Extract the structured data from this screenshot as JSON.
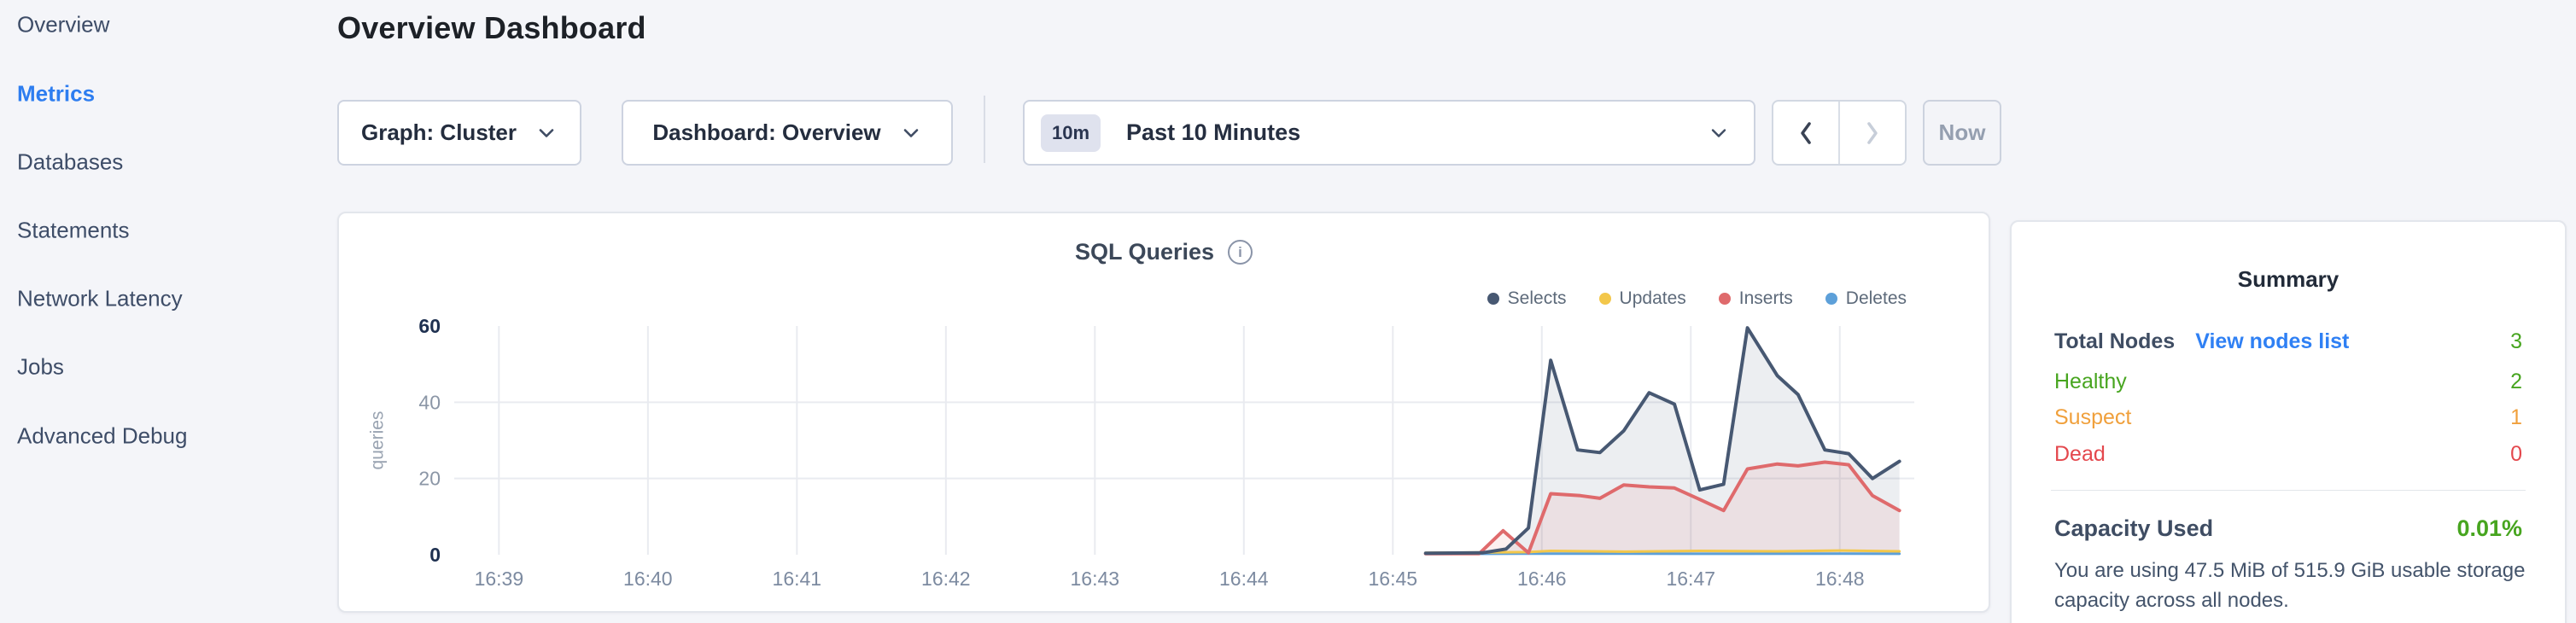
{
  "sidebar": {
    "items": [
      {
        "label": "Overview",
        "active": false
      },
      {
        "label": "Metrics",
        "active": true
      },
      {
        "label": "Databases",
        "active": false
      },
      {
        "label": "Statements",
        "active": false
      },
      {
        "label": "Network Latency",
        "active": false
      },
      {
        "label": "Jobs",
        "active": false
      },
      {
        "label": "Advanced Debug",
        "active": false
      }
    ]
  },
  "header": {
    "title": "Overview Dashboard"
  },
  "toolbar": {
    "graph_dropdown": "Graph: Cluster",
    "dashboard_dropdown": "Dashboard: Overview",
    "time_badge": "10m",
    "time_label": "Past 10 Minutes",
    "now_label": "Now"
  },
  "chart_card": {
    "title": "SQL Queries"
  },
  "chart_data": {
    "type": "area",
    "title": "SQL Queries",
    "ylabel": "queries",
    "ylim": [
      0,
      60
    ],
    "yticks": [
      0,
      20,
      40,
      60
    ],
    "grid": true,
    "legend_position": "top-right",
    "x_axis": {
      "tick_labels": [
        "16:39",
        "16:40",
        "16:41",
        "16:42",
        "16:43",
        "16:44",
        "16:45",
        "16:46",
        "16:47",
        "16:48"
      ],
      "tick_minutes": [
        39,
        40,
        41,
        42,
        43,
        44,
        45,
        46,
        47,
        48
      ],
      "range_minutes": [
        38.7,
        48.5
      ]
    },
    "series": [
      {
        "name": "Selects",
        "color": "#475872",
        "fill": "rgba(71,88,114,0.10)",
        "points": [
          [
            45.22,
            0.4
          ],
          [
            45.6,
            0.5
          ],
          [
            45.76,
            1.5
          ],
          [
            45.91,
            7
          ],
          [
            46.06,
            51
          ],
          [
            46.24,
            27.5
          ],
          [
            46.39,
            26.8
          ],
          [
            46.55,
            32.5
          ],
          [
            46.72,
            42.5
          ],
          [
            46.89,
            39.5
          ],
          [
            47.06,
            17
          ],
          [
            47.22,
            18.5
          ],
          [
            47.38,
            59.5
          ],
          [
            47.58,
            47
          ],
          [
            47.72,
            42
          ],
          [
            47.9,
            27.5
          ],
          [
            48.06,
            26.5
          ],
          [
            48.22,
            20
          ],
          [
            48.4,
            24.5
          ]
        ]
      },
      {
        "name": "Updates",
        "color": "#f3c74a",
        "fill": "none",
        "points": [
          [
            45.22,
            0.5
          ],
          [
            45.91,
            0.7
          ],
          [
            46.06,
            1.0
          ],
          [
            46.55,
            0.8
          ],
          [
            47.06,
            1.0
          ],
          [
            47.58,
            0.9
          ],
          [
            48.0,
            1.1
          ],
          [
            48.4,
            0.9
          ]
        ]
      },
      {
        "name": "Inserts",
        "color": "#df6a6c",
        "fill": "rgba(223,106,108,0.10)",
        "points": [
          [
            45.22,
            0.3
          ],
          [
            45.58,
            0.3
          ],
          [
            45.74,
            6.3
          ],
          [
            45.91,
            0.5
          ],
          [
            46.06,
            16
          ],
          [
            46.26,
            15.5
          ],
          [
            46.39,
            14.8
          ],
          [
            46.55,
            18.3
          ],
          [
            46.72,
            17.8
          ],
          [
            46.89,
            17.5
          ],
          [
            47.06,
            14.5
          ],
          [
            47.22,
            11.6
          ],
          [
            47.38,
            22.5
          ],
          [
            47.58,
            23.8
          ],
          [
            47.72,
            23.3
          ],
          [
            47.9,
            24.3
          ],
          [
            48.06,
            23.6
          ],
          [
            48.22,
            15.5
          ],
          [
            48.4,
            11.6
          ]
        ]
      },
      {
        "name": "Deletes",
        "color": "#5da0d9",
        "fill": "none",
        "points": [
          [
            45.22,
            0.2
          ],
          [
            46.06,
            0.3
          ],
          [
            47.0,
            0.25
          ],
          [
            48.0,
            0.3
          ],
          [
            48.4,
            0.25
          ]
        ]
      }
    ]
  },
  "summary": {
    "title": "Summary",
    "total_nodes_label": "Total Nodes",
    "view_nodes_link": "View nodes list",
    "total_nodes_value": "3",
    "rows": [
      {
        "label": "Healthy",
        "value": "2",
        "color": "#47a51f"
      },
      {
        "label": "Suspect",
        "value": "1",
        "color": "#f0a03c"
      },
      {
        "label": "Dead",
        "value": "0",
        "color": "#e4484d"
      }
    ],
    "capacity_label": "Capacity Used",
    "capacity_value": "0.01%",
    "capacity_value_color": "#47a51f",
    "total_nodes_value_color": "#47a51f",
    "capacity_description": "You are using 47.5 MiB of 515.9 GiB usable storage capacity across all nodes."
  },
  "colors": {
    "accent_blue": "#2d7df0",
    "page_background": "#f4f5f9",
    "axis_label_bold": "#1e3050",
    "axis_label_minor": "#8b96a6",
    "x_axis_label": "#7c8aa0",
    "gridline": "#e9ebf0"
  }
}
